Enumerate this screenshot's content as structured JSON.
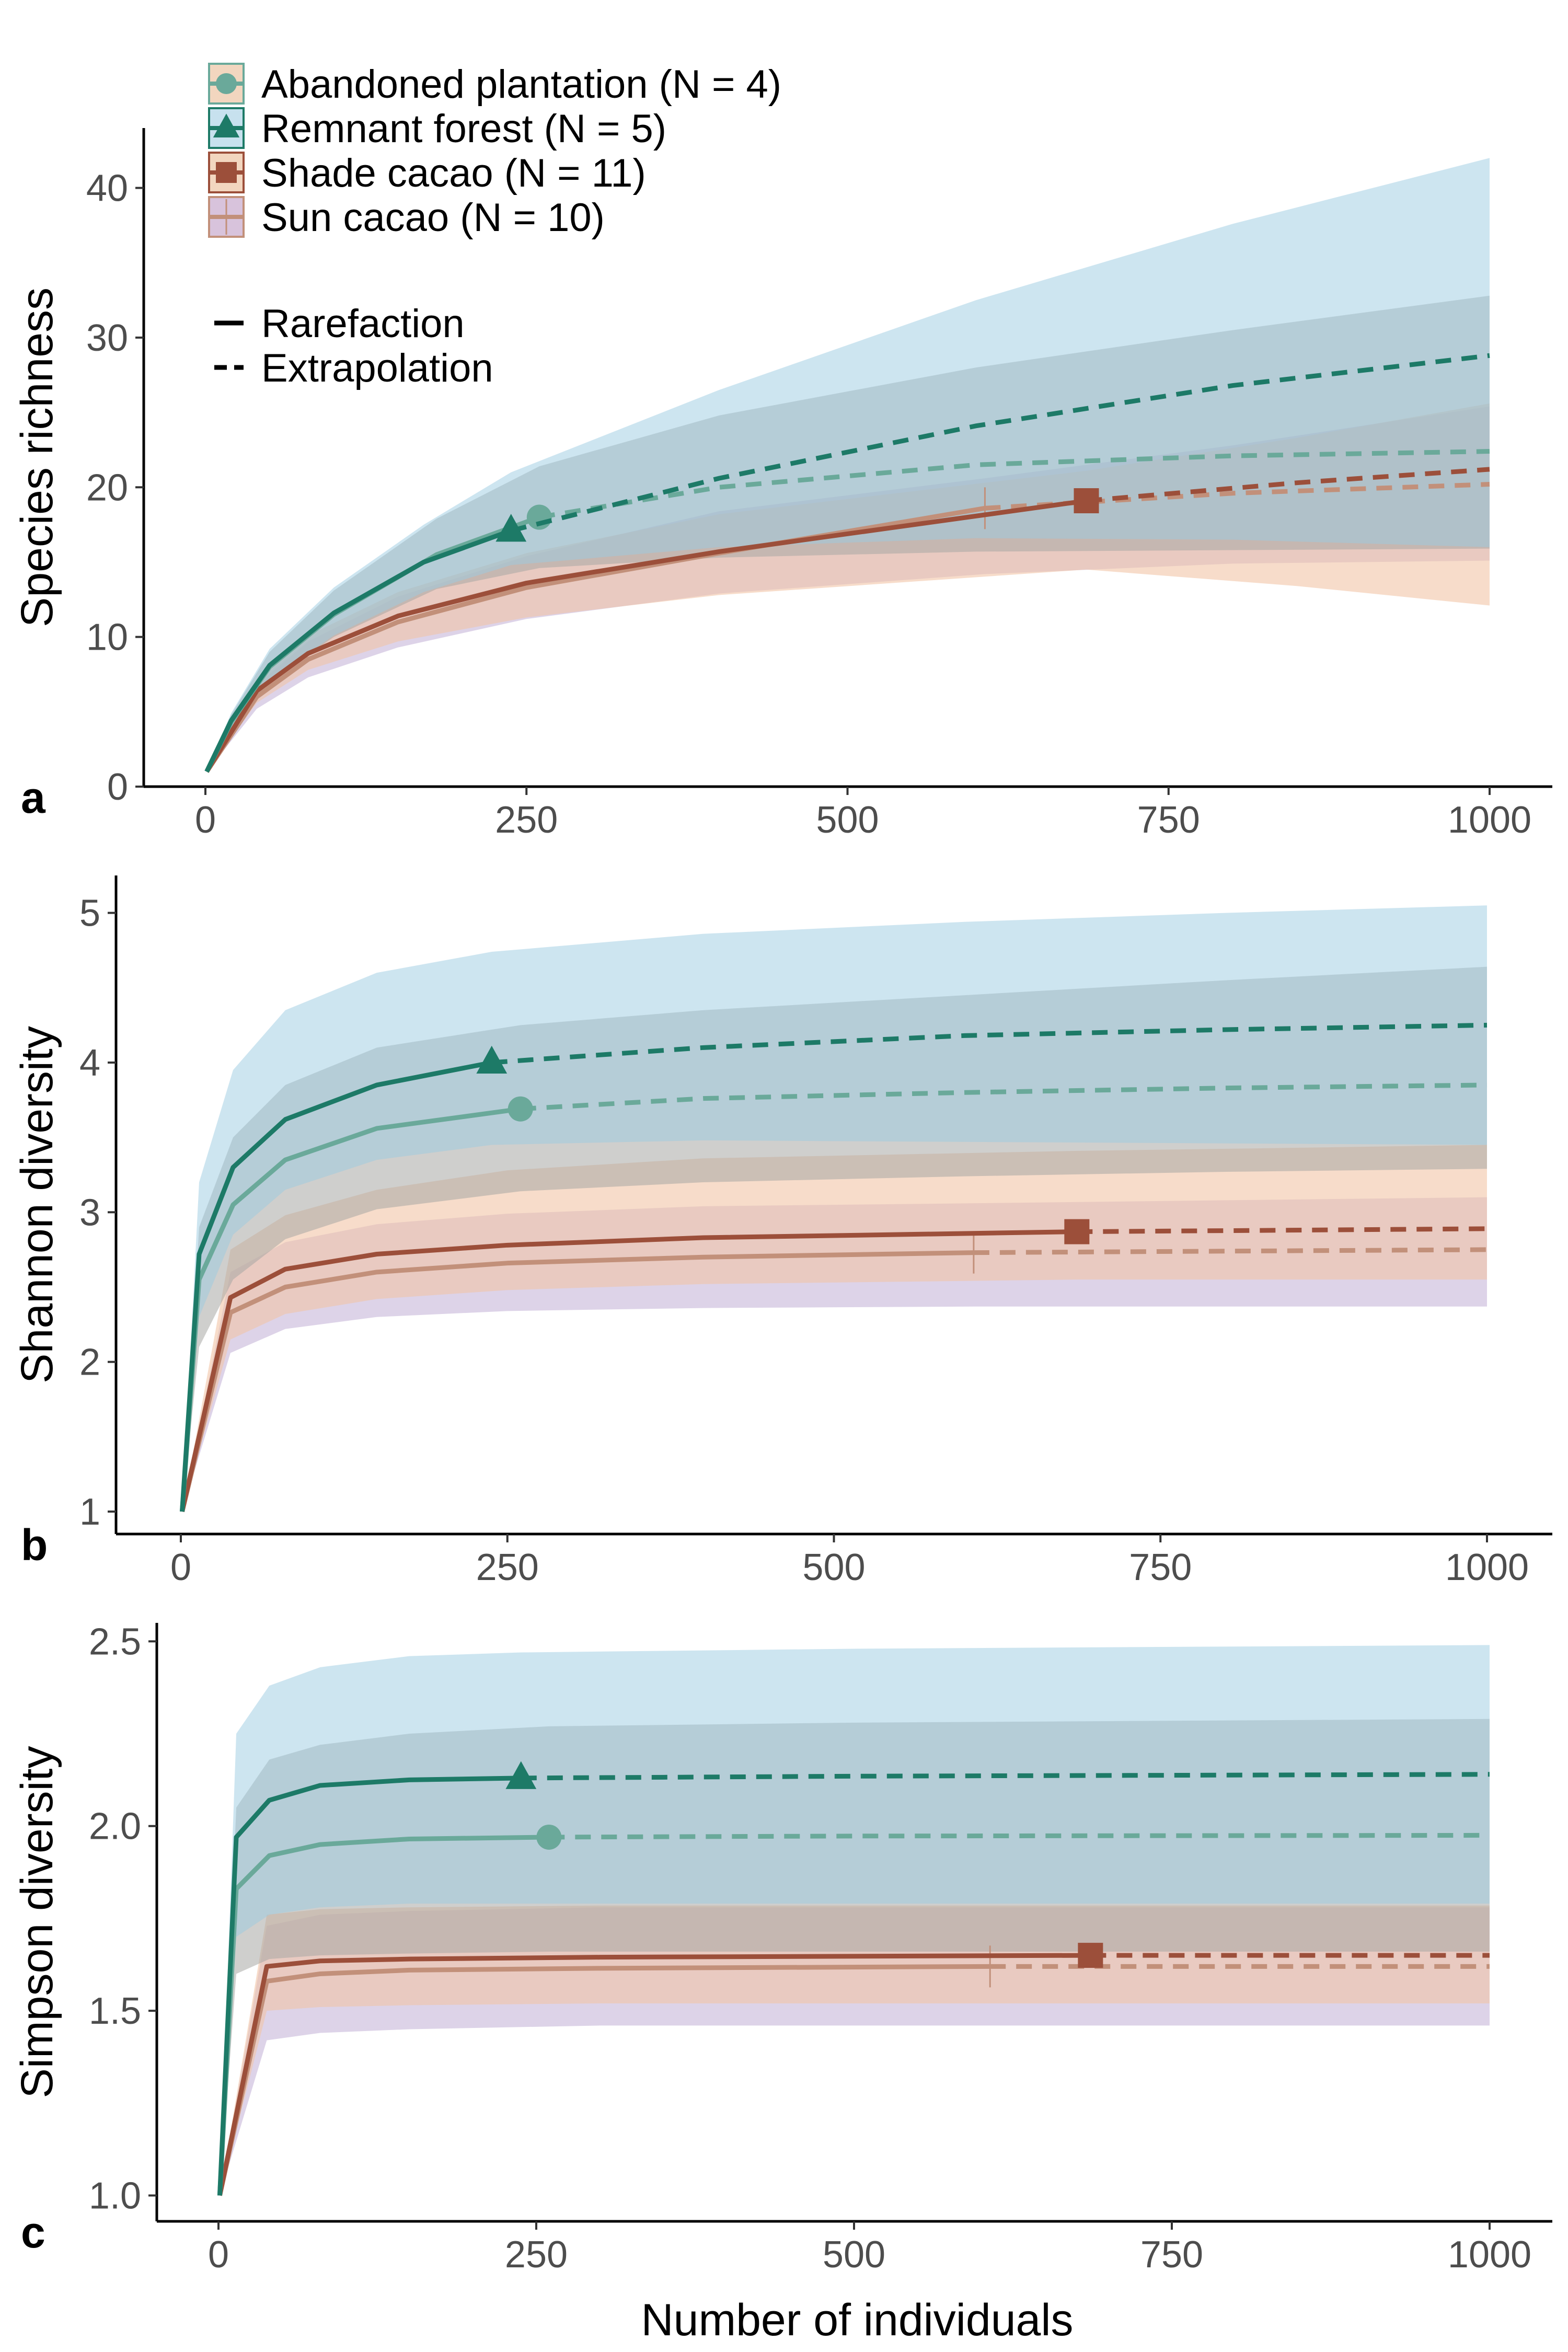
{
  "legend": {
    "groups": [
      {
        "label": "Abandoned plantation (N = 4)",
        "color": "#6aa99a",
        "band": "#f2d6bf",
        "shape": "circle"
      },
      {
        "label": "Remnant forest (N = 5)",
        "color": "#1d7a67",
        "band": "#c7e1ee",
        "shape": "triangle"
      },
      {
        "label": "Shade cacao (N = 11)",
        "color": "#9c4f3a",
        "band": "#f2d6bf",
        "shape": "square"
      },
      {
        "label": "Sun cacao (N = 10)",
        "color": "#c2907a",
        "band": "#d8c3dc",
        "shape": "bar"
      }
    ],
    "methods": [
      {
        "label": "Rarefaction",
        "dash": "solid"
      },
      {
        "label": "Extrapolation",
        "dash": "dashed"
      }
    ]
  },
  "xlabel": "Number of individuals",
  "chart_data": [
    {
      "type": "line",
      "panel": "a",
      "ylabel": "Species richness",
      "xlim": [
        0,
        1000
      ],
      "ylim": [
        0,
        44
      ],
      "xticks": [
        0,
        250,
        500,
        750,
        1000
      ],
      "yticks": [
        0,
        10,
        20,
        30,
        40
      ],
      "series": [
        {
          "name": "Sun cacao (N = 10)",
          "color": "#c2907a",
          "fill": "#9f82bd",
          "fill_opacity": 0.35,
          "observed_x": 607,
          "x": [
            1,
            40,
            80,
            150,
            250,
            400,
            607,
            800,
            1000
          ],
          "y": [
            1,
            6,
            8.5,
            11,
            13.3,
            15.6,
            18.6,
            19.6,
            20.2
          ],
          "lower": [
            1,
            5.2,
            7.3,
            9.3,
            11.2,
            12.9,
            14.2,
            14.9,
            15.1
          ],
          "upper": [
            1,
            6.8,
            9.7,
            12.7,
            15.4,
            18.4,
            20.6,
            22.8,
            25.4
          ]
        },
        {
          "name": "Shade cacao (N = 11)",
          "color": "#9c4f3a",
          "fill": "#f2c4a6",
          "fill_opacity": 0.6,
          "observed_x": 686,
          "x": [
            1,
            40,
            80,
            150,
            250,
            400,
            686,
            850,
            1000
          ],
          "y": [
            1,
            6.4,
            8.9,
            11.4,
            13.6,
            15.7,
            19.1,
            20.3,
            21.2
          ],
          "lower": [
            1,
            5.6,
            7.8,
            9.7,
            11.3,
            12.8,
            14.5,
            13.4,
            12.1
          ],
          "upper": [
            1,
            7.2,
            10.1,
            13,
            15.6,
            18.2,
            21.1,
            23.3,
            25.6
          ]
        },
        {
          "name": "Abandoned plantation (N = 4)",
          "color": "#6aa99a",
          "fill": "#a8a8a4",
          "fill_opacity": 0.55,
          "observed_x": 260,
          "x": [
            1,
            20,
            50,
            100,
            180,
            260,
            400,
            600,
            800,
            1000
          ],
          "y": [
            1,
            4.3,
            8,
            11.5,
            15.5,
            18,
            20,
            21.5,
            22.1,
            22.4
          ],
          "lower": [
            1,
            3.8,
            7,
            10,
            13.2,
            14.6,
            15.3,
            15.7,
            15.8,
            15.9
          ],
          "upper": [
            1,
            4.8,
            9,
            13.1,
            17.9,
            21.4,
            24.8,
            28,
            30.5,
            32.8
          ]
        },
        {
          "name": "Remnant forest (N = 5)",
          "color": "#1d7a67",
          "fill": "#9ccce1",
          "fill_opacity": 0.5,
          "observed_x": 238,
          "x": [
            1,
            20,
            50,
            100,
            170,
            238,
            400,
            600,
            800,
            1000
          ],
          "y": [
            1,
            4.4,
            8.1,
            11.6,
            15,
            17.1,
            20.6,
            24.1,
            26.8,
            28.8
          ],
          "lower": [
            1,
            3.9,
            7.1,
            10.1,
            13,
            14.8,
            16,
            16.6,
            16.5,
            16
          ],
          "upper": [
            1,
            4.9,
            9.2,
            13.3,
            17.5,
            21,
            26.5,
            32.5,
            37.6,
            42
          ]
        }
      ]
    },
    {
      "type": "line",
      "panel": "b",
      "ylabel": "Shannon diversity",
      "xlim": [
        0,
        1000
      ],
      "ylim": [
        0.85,
        5.25
      ],
      "xticks": [
        0,
        250,
        500,
        750,
        1000
      ],
      "yticks": [
        1,
        2,
        3,
        4,
        5
      ],
      "series": [
        {
          "name": "Sun cacao (N = 10)",
          "color": "#c2907a",
          "fill": "#9f82bd",
          "fill_opacity": 0.35,
          "observed_x": 607,
          "x": [
            1,
            38,
            80,
            150,
            250,
            400,
            607,
            800,
            1000
          ],
          "y": [
            1,
            2.33,
            2.5,
            2.6,
            2.66,
            2.7,
            2.73,
            2.74,
            2.75
          ],
          "lower": [
            1,
            2.06,
            2.22,
            2.3,
            2.34,
            2.36,
            2.37,
            2.37,
            2.37
          ],
          "upper": [
            1,
            2.6,
            2.8,
            2.92,
            2.99,
            3.04,
            3.06,
            3.08,
            3.1
          ]
        },
        {
          "name": "Shade cacao (N = 11)",
          "color": "#9c4f3a",
          "fill": "#f2c4a6",
          "fill_opacity": 0.6,
          "observed_x": 686,
          "x": [
            1,
            38,
            80,
            150,
            250,
            400,
            686,
            850,
            1000
          ],
          "y": [
            1,
            2.43,
            2.62,
            2.72,
            2.78,
            2.83,
            2.87,
            2.88,
            2.89
          ],
          "lower": [
            1,
            2.15,
            2.32,
            2.42,
            2.48,
            2.52,
            2.55,
            2.55,
            2.55
          ],
          "upper": [
            1,
            2.75,
            2.98,
            3.15,
            3.28,
            3.36,
            3.41,
            3.43,
            3.45
          ]
        },
        {
          "name": "Abandoned plantation (N = 4)",
          "color": "#6aa99a",
          "fill": "#a8a8a4",
          "fill_opacity": 0.55,
          "observed_x": 260,
          "x": [
            1,
            14,
            40,
            80,
            150,
            260,
            400,
            600,
            800,
            1000
          ],
          "y": [
            1,
            2.55,
            3.05,
            3.35,
            3.56,
            3.69,
            3.76,
            3.8,
            3.83,
            3.85
          ],
          "lower": [
            1,
            2.1,
            2.55,
            2.82,
            3.02,
            3.14,
            3.2,
            3.24,
            3.27,
            3.29
          ],
          "upper": [
            1,
            2.9,
            3.5,
            3.85,
            4.1,
            4.25,
            4.35,
            4.45,
            4.55,
            4.64
          ]
        },
        {
          "name": "Remnant forest (N = 5)",
          "color": "#1d7a67",
          "fill": "#9ccce1",
          "fill_opacity": 0.5,
          "observed_x": 238,
          "x": [
            1,
            14,
            40,
            80,
            150,
            238,
            400,
            600,
            800,
            1000
          ],
          "y": [
            1,
            2.72,
            3.3,
            3.62,
            3.85,
            4,
            4.1,
            4.18,
            4.22,
            4.25
          ],
          "lower": [
            1,
            2.3,
            2.85,
            3.15,
            3.35,
            3.45,
            3.48,
            3.47,
            3.46,
            3.45
          ],
          "upper": [
            1,
            3.2,
            3.95,
            4.35,
            4.6,
            4.74,
            4.86,
            4.94,
            5,
            5.05
          ]
        }
      ]
    },
    {
      "type": "line",
      "panel": "c",
      "ylabel": "Simpson diversity",
      "xlim": [
        0,
        1000
      ],
      "ylim": [
        0.93,
        2.55
      ],
      "xticks": [
        0,
        250,
        500,
        750,
        1000
      ],
      "yticks": [
        1.0,
        1.5,
        2.0,
        2.5
      ],
      "ytick_labels": [
        "1.0",
        "1.5",
        "2.0",
        "2.5"
      ],
      "series": [
        {
          "name": "Sun cacao (N = 10)",
          "color": "#c2907a",
          "fill": "#9f82bd",
          "fill_opacity": 0.35,
          "observed_x": 607,
          "x": [
            1,
            38,
            80,
            150,
            300,
            607,
            800,
            1000
          ],
          "y": [
            1,
            1.58,
            1.6,
            1.61,
            1.615,
            1.62,
            1.62,
            1.62
          ],
          "lower": [
            1,
            1.42,
            1.44,
            1.45,
            1.46,
            1.46,
            1.46,
            1.46
          ],
          "upper": [
            1,
            1.73,
            1.76,
            1.77,
            1.78,
            1.78,
            1.78,
            1.78
          ]
        },
        {
          "name": "Shade cacao (N = 11)",
          "color": "#9c4f3a",
          "fill": "#f2c4a6",
          "fill_opacity": 0.6,
          "observed_x": 686,
          "x": [
            1,
            38,
            80,
            150,
            300,
            686,
            850,
            1000
          ],
          "y": [
            1,
            1.62,
            1.635,
            1.64,
            1.645,
            1.65,
            1.65,
            1.65
          ],
          "lower": [
            1,
            1.5,
            1.51,
            1.515,
            1.52,
            1.52,
            1.52,
            1.52
          ],
          "upper": [
            1,
            1.76,
            1.775,
            1.78,
            1.785,
            1.785,
            1.785,
            1.785
          ]
        },
        {
          "name": "Abandoned plantation (N = 4)",
          "color": "#6aa99a",
          "fill": "#a8a8a4",
          "fill_opacity": 0.55,
          "observed_x": 260,
          "x": [
            1,
            14,
            40,
            80,
            150,
            260,
            500,
            1000
          ],
          "y": [
            1,
            1.83,
            1.92,
            1.95,
            1.965,
            1.97,
            1.973,
            1.975
          ],
          "lower": [
            1,
            1.6,
            1.64,
            1.65,
            1.655,
            1.66,
            1.66,
            1.66
          ],
          "upper": [
            1,
            2.05,
            2.18,
            2.22,
            2.25,
            2.27,
            2.28,
            2.29
          ]
        },
        {
          "name": "Remnant forest (N = 5)",
          "color": "#1d7a67",
          "fill": "#9ccce1",
          "fill_opacity": 0.5,
          "observed_x": 238,
          "x": [
            1,
            14,
            40,
            80,
            150,
            238,
            500,
            1000
          ],
          "y": [
            1,
            1.97,
            2.07,
            2.11,
            2.125,
            2.13,
            2.135,
            2.14
          ],
          "lower": [
            1,
            1.7,
            1.76,
            1.78,
            1.79,
            1.79,
            1.79,
            1.79
          ],
          "upper": [
            1,
            2.25,
            2.38,
            2.43,
            2.46,
            2.47,
            2.48,
            2.49
          ]
        }
      ]
    }
  ]
}
